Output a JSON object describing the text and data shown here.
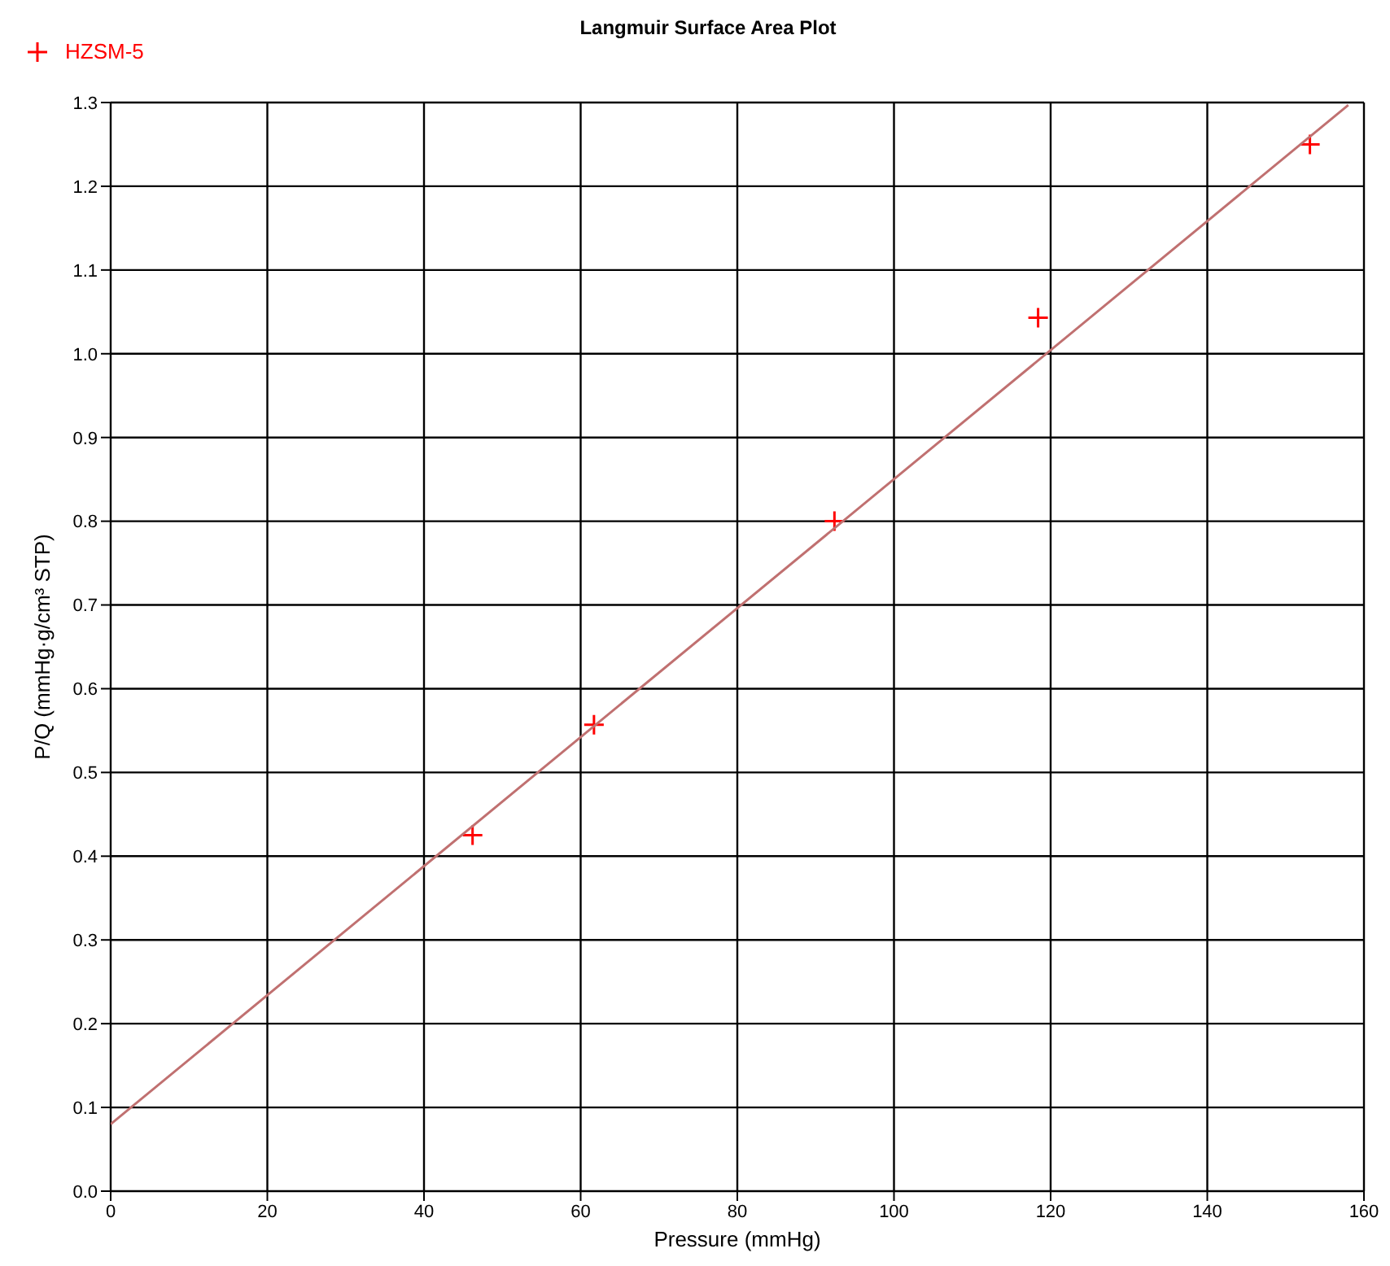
{
  "chart_data": {
    "type": "scatter",
    "title": "Langmuir Surface Area Plot",
    "xlabel": "Pressure (mmHg)",
    "ylabel": "P/Q (mmHg·g/cm³ STP)",
    "series": [
      {
        "name": "HZSM-5",
        "color": "#ff0000",
        "marker": "cross",
        "x": [
          46.2,
          61.7,
          92.4,
          118.4,
          153.1
        ],
        "values": [
          0.425,
          0.557,
          0.8,
          1.043,
          1.25
        ]
      },
      {
        "type": "line",
        "color": "#c07070",
        "marker": "none",
        "x": [
          0,
          158
        ],
        "values": [
          0.08,
          1.297
        ]
      }
    ],
    "xlim": [
      0,
      160
    ],
    "xticks": [
      0,
      20,
      40,
      60,
      80,
      100,
      120,
      140,
      160
    ],
    "ylim": [
      0,
      1.3
    ],
    "yticks": [
      {
        "value": 0,
        "label": "0.0"
      },
      0.1,
      0.2,
      0.3,
      0.4,
      0.5,
      0.6,
      0.7,
      0.8,
      0.9,
      {
        "value": 1,
        "label": "1.0"
      },
      1.1,
      1.2,
      1.3
    ],
    "grid": true,
    "legend": "top left"
  }
}
